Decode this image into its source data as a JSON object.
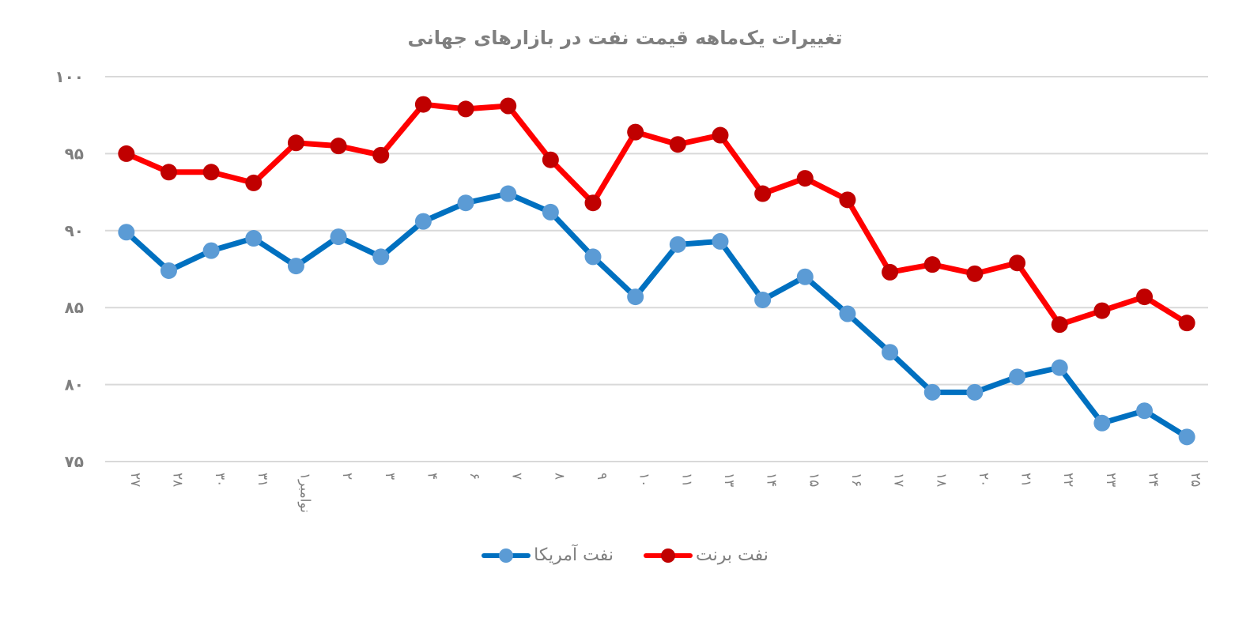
{
  "chart_data": {
    "type": "line",
    "title": "تغییرات یک‌ماهه قیمت نفت در بازارهای جهانی",
    "xlabel": "",
    "ylabel": "",
    "ylim": [
      75,
      100
    ],
    "yticks": [
      "۱۰۰",
      "۹۵",
      "۹۰",
      "۸۵",
      "۸۰",
      "۷۵"
    ],
    "ytick_values": [
      100,
      95,
      90,
      85,
      80,
      75
    ],
    "grid": true,
    "legend_position": "bottom",
    "categories": [
      "۲۷",
      "۲۸",
      "۳۰",
      "۳۱",
      "۱نوامبر",
      "۲",
      "۳",
      "۴",
      "۶",
      "۷",
      "۸",
      "۹",
      "۱۰",
      "۱۱",
      "۱۳",
      "۱۴",
      "۱۵",
      "۱۶",
      "۱۷",
      "۱۸",
      "۲۰",
      "۲۱",
      "۲۲",
      "۲۳",
      "۲۴",
      "۲۵"
    ],
    "series": [
      {
        "name": "نفت برنت",
        "line_color": "#FF0000",
        "marker_color": "#C00000",
        "values": [
          95.0,
          93.8,
          93.8,
          93.1,
          95.7,
          95.5,
          94.9,
          98.2,
          97.9,
          98.1,
          94.6,
          91.8,
          96.4,
          95.6,
          96.2,
          92.4,
          93.4,
          92.0,
          87.3,
          87.8,
          87.2,
          87.9,
          83.9,
          84.8,
          85.7,
          84.0
        ]
      },
      {
        "name": "نفت آمریکا",
        "line_color": "#0070C0",
        "marker_color": "#5B9BD5",
        "values": [
          89.9,
          87.4,
          88.7,
          89.5,
          87.7,
          89.6,
          88.3,
          90.6,
          91.8,
          92.4,
          91.2,
          88.3,
          85.7,
          89.1,
          89.3,
          85.5,
          87.0,
          84.6,
          82.1,
          79.5,
          79.5,
          80.5,
          81.1,
          77.5,
          78.3,
          76.6
        ]
      }
    ]
  },
  "legend": {
    "items": [
      {
        "label": "نفت برنت",
        "line_color": "#FF0000",
        "marker_color": "#C00000"
      },
      {
        "label": "نفت آمریکا",
        "line_color": "#0070C0",
        "marker_color": "#5B9BD5"
      }
    ]
  }
}
